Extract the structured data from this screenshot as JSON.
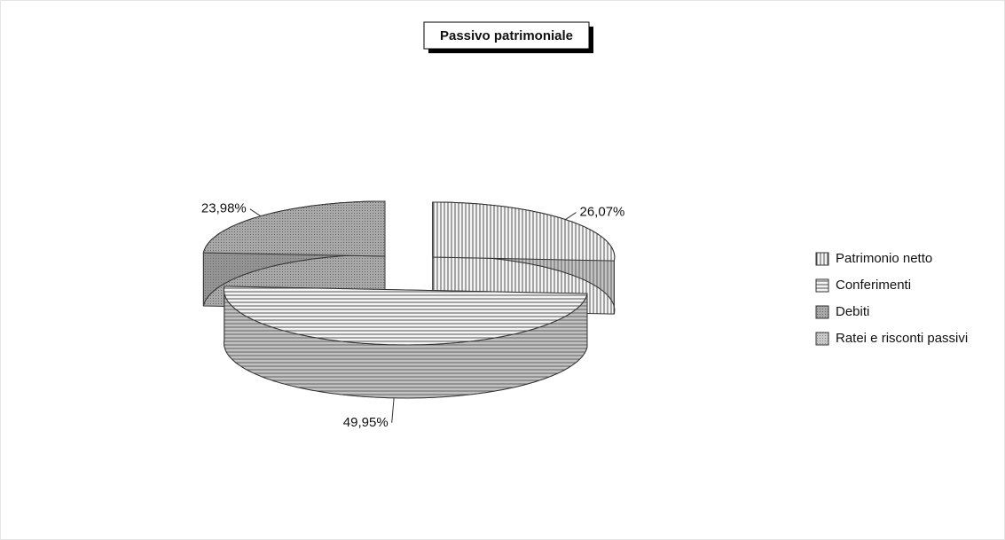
{
  "chart_data": {
    "type": "pie3d",
    "title": "Passivo patrimoniale",
    "categories": [
      "Patrimonio netto",
      "Conferimenti",
      "Debiti",
      "Ratei e risconti passivi"
    ],
    "values": [
      26.07,
      49.95,
      23.98,
      0
    ],
    "value_labels": [
      "26,07%",
      "49,95%",
      "23,98%",
      null
    ],
    "colors": [
      "#e8e8e8",
      "#cfcfcf",
      "#9a9a9a",
      "#b8b8b8"
    ],
    "legend": "right"
  }
}
